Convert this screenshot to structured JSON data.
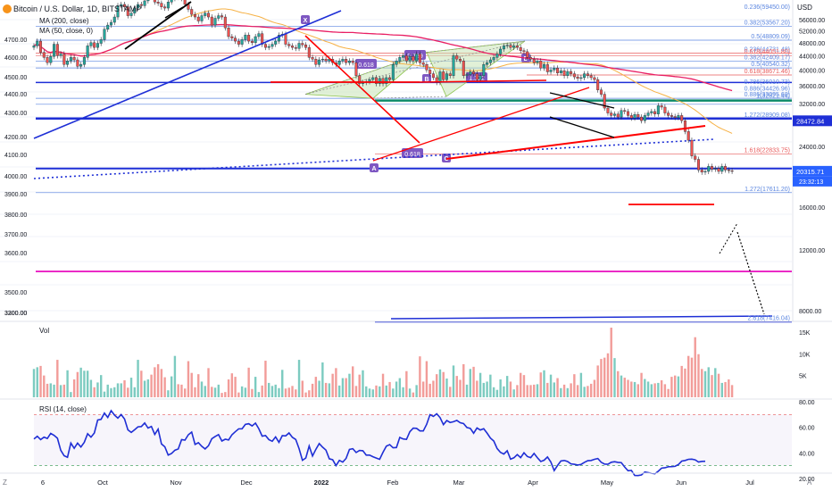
{
  "chart_data": {
    "type": "candlestick",
    "title": "Bitcoin / U.S. Dollar, 1D, BITSTAMP",
    "indicators": [
      "MA (200, close)",
      "MA (50, close, 0)"
    ],
    "currency_label": "USD",
    "left_scale_ticks": [
      "4700.00",
      "4600.00",
      "4500.00",
      "4400.00",
      "4300.00",
      "4200.00",
      "4100.00",
      "4000.00",
      "3900.00",
      "3800.00",
      "3700.00",
      "3600.00",
      "3500.00",
      "3300.00",
      "3200.00"
    ],
    "right_scale_ticks": [
      "56000.00",
      "52000.00",
      "48000.00",
      "44000.00",
      "40000.00",
      "36000.00",
      "32000.00",
      "28000.00",
      "24000.00",
      "20000.00",
      "16000.00",
      "12000.00",
      "8000.00"
    ],
    "x_ticks": [
      "6",
      "Oct",
      "Nov",
      "Dec",
      "2022",
      "Feb",
      "Mar",
      "Apr",
      "May",
      "Jun",
      "Jul"
    ],
    "price_close": [
      47000,
      48500,
      45000,
      43500,
      42000,
      43800,
      47500,
      44000,
      44500,
      41500,
      42500,
      43500,
      42800,
      41000,
      41500,
      43500,
      47000,
      48000,
      46500,
      47800,
      49000,
      52500,
      54000,
      55000,
      57000,
      61500,
      62000,
      61000,
      57500,
      58500,
      60500,
      62000,
      61500,
      63500,
      66000,
      65500,
      63000,
      62500,
      61000,
      60500,
      63000,
      64500,
      66000,
      65000,
      64500,
      62000,
      60000,
      58000,
      57000,
      55500,
      57500,
      58500,
      57000,
      54000,
      56500,
      57500,
      57000,
      53000,
      50000,
      49500,
      48500,
      47500,
      49000,
      50500,
      48500,
      48000,
      50000,
      51000,
      47500,
      46500,
      46800,
      47500,
      48500,
      50500,
      50800,
      47500,
      47000,
      46500,
      46200,
      47800,
      47300,
      46500,
      43500,
      43000,
      41500,
      42800,
      43000,
      42500,
      43000,
      42000,
      41500,
      42500,
      43000,
      42000,
      42500,
      42000,
      38500,
      36500,
      36800,
      37000,
      37500,
      38000,
      36500,
      37800,
      36500,
      38000,
      37500,
      41500,
      42500,
      43500,
      44000,
      42500,
      43800,
      42500,
      44500,
      42000,
      41500,
      40000,
      39000,
      38000,
      36800,
      39500,
      37500,
      39000,
      38500,
      44000,
      43000,
      42500,
      38500,
      38800,
      39500,
      39000,
      37500,
      38500,
      41500,
      42000,
      42800,
      43500,
      44500,
      46000,
      47000,
      47200,
      46500,
      47000,
      46500,
      45500,
      45200,
      43500,
      43000,
      42000,
      42500,
      40500,
      41500,
      39500,
      40000,
      40500,
      39200,
      39800,
      38500,
      39600,
      39000,
      38200,
      37800,
      38000,
      39000,
      38500,
      38000,
      37500,
      35000,
      34000,
      31000,
      30000,
      29500,
      29800,
      29200,
      30500,
      30300,
      29500,
      29000,
      29700,
      29200,
      28500,
      29500,
      30000,
      30300,
      29800,
      31500,
      31200,
      30000,
      29500,
      29300,
      29100,
      29500,
      28500,
      26500,
      25000,
      22500,
      22000,
      20500,
      20200,
      20300,
      21000,
      20600,
      20700,
      20300,
      21000,
      20500,
      20400,
      20316
    ],
    "volume": [
      6.5,
      6.9,
      7.2,
      5.0,
      3.1,
      3.2,
      2.9,
      8.6,
      2.8,
      2.9,
      6.2,
      1.2,
      4.1,
      5.8,
      6.8,
      6.1,
      6.1,
      4.0,
      2.3,
      3.4,
      5.1,
      1.3,
      2.9,
      2.1,
      2.3,
      3.2,
      3.2,
      3.9,
      2.2,
      4.5,
      2.3,
      8.6,
      6.1,
      3.8,
      4.1,
      5.2,
      6.9,
      7.6,
      6.5,
      4.6,
      1.6,
      4.8,
      9.5,
      3.0,
      2.9,
      2.0,
      8.3,
      5.6,
      2.3,
      5.3,
      3.6,
      2.6,
      6.7,
      2.4,
      2.2,
      2.9,
      1.0,
      1.2,
      4.1,
      5.5,
      4.7,
      1.1,
      2.5,
      2.2,
      6.8,
      1.9,
      4.7,
      1.2,
      2.7,
      8.4,
      3.3,
      2.6,
      2.9,
      2.1,
      6.3,
      2.0,
      2.2,
      2.6,
      1.8,
      8.6,
      3.8,
      1.1,
      1.6,
      3.1,
      4.7,
      3.8,
      8.0,
      3.3,
      3.2,
      5.4,
      6.7,
      2.7,
      4.4,
      4.4,
      5.4,
      7.1,
      2.6,
      5.2,
      6.2,
      2.5,
      2.0,
      1.8,
      2.7,
      2.5,
      5.4,
      2.7,
      3.5,
      2.0,
      3.6,
      4.4,
      2.3,
      6.0,
      2.0,
      1.1,
      2.8,
      9.4,
      3.6,
      8.3,
      3.1,
      3.8,
      5.3,
      6.4,
      5.8,
      4.3,
      2.4,
      7.3,
      4.9,
      4.0,
      7.6,
      2.9,
      6.5,
      7.0,
      3.8,
      5.6,
      3.3,
      3.6,
      5.2,
      2.3,
      1.7,
      4.1,
      2.5,
      4.9,
      3.6,
      1.8,
      2.8,
      5.6,
      5.1,
      2.8,
      2.8,
      2.9,
      3.0,
      5.7,
      6.2,
      3.3,
      5.2,
      3.4,
      4.4,
      2.1,
      2.9,
      2.1,
      3.2,
      5.3,
      2.8,
      5.6,
      2.4,
      2.6,
      3.1,
      4.0,
      7.3,
      8.8,
      9.1,
      10.1,
      16.0,
      9.0,
      6.0,
      5.0,
      4.5,
      4.0,
      3.6,
      3.5,
      3.0,
      5.6,
      4.2,
      3.6,
      3.0,
      3.2,
      3.3,
      3.9,
      3.0,
      1.9,
      4.7,
      5.0,
      4.8,
      7.2,
      6.6,
      9.5,
      9.1,
      13.8,
      9.9,
      6.5,
      6.0,
      6.9,
      5.1,
      6.7,
      5.4,
      3.3,
      3.5,
      4.1,
      2.8
    ],
    "rsi_title": "RSI (14, close)",
    "rsi_ticks": [
      "80.00",
      "60.00",
      "40.00",
      "20.00"
    ],
    "rsi": [
      50.9,
      53,
      50.4,
      52.3,
      51.3,
      55.3,
      53.7,
      51.5,
      42,
      37.8,
      36.6,
      47.7,
      43.6,
      47.7,
      44.6,
      48.3,
      55,
      52.3,
      55.6,
      65.7,
      66.2,
      71.1,
      67.7,
      73,
      69.6,
      67.2,
      70,
      66.5,
      58,
      56,
      58.1,
      60.4,
      60.6,
      63.4,
      59.4,
      60.7,
      54.4,
      58.6,
      47,
      44.8,
      38.3,
      39.6,
      42.1,
      43.1,
      50.4,
      50,
      54.2,
      56.3,
      46.6,
      48,
      45.2,
      43.1,
      45.6,
      51.1,
      52.8,
      54.3,
      49.3,
      50.7,
      50.1,
      54.2,
      56.6,
      58.8,
      58.8,
      62.3,
      62.8,
      61.1,
      63.3,
      58.9,
      53.1,
      53.6,
      50.4,
      49.1,
      52.5,
      48.3,
      53.5,
      53.3,
      55.6,
      52.2,
      50.5,
      43.3,
      34.2,
      36,
      45.4,
      37.6,
      42.8,
      47.3,
      44.5,
      42.2,
      35.4,
      34.7,
      30.1,
      34.2,
      32.8,
      35.7,
      42.7,
      43.3,
      40.3,
      41.9,
      41.7,
      38.3,
      38.3,
      37,
      36,
      35,
      40.5,
      45.3,
      46.5,
      44,
      44.2,
      52.1,
      50.9,
      50.6,
      56.6,
      59.4,
      59.2,
      57.2,
      57.2,
      62.3,
      69.9,
      68.5,
      70.6,
      67.6,
      62.1,
      65.3,
      63.8,
      64.4,
      65.4,
      63.6,
      62.9,
      59.8,
      59.2,
      55.4,
      59.5,
      57.9,
      58.9,
      55.5,
      51.6,
      49.3,
      43.4,
      40.4,
      39.1,
      41.7,
      35.1,
      36.2,
      38.7,
      36.3,
      40.1,
      37.2,
      36.3,
      39.6,
      36.2,
      33.3,
      34.3,
      36.8,
      32.9,
      26.2,
      30.2,
      33.7,
      34.1,
      33.3,
      31.4,
      31.1,
      30.5,
      31,
      32.6,
      33.9,
      34.1,
      35,
      35.6,
      32.7,
      31.3,
      31.1,
      32.7,
      33.1,
      32.6,
      32.4,
      29,
      26.1,
      26.3,
      22.4,
      22.3,
      22.8,
      25.1,
      24.6,
      24.1,
      23.7,
      25.7,
      28.1,
      28.4,
      29.2,
      29.3,
      29.5,
      30.9,
      33.6,
      34.1,
      35,
      35.1,
      34.6,
      32.9,
      33.4,
      33.5
    ],
    "fib_labels": [
      {
        "text": "0.236(59450.00)",
        "price": 59450
      },
      {
        "text": "0.382(53567.20)",
        "price": 53567
      },
      {
        "text": "0.5(48809.09)",
        "price": 48809
      },
      {
        "text": "0.236(44731.48)",
        "price": 44731
      },
      {
        "text": "0.618(44051.80)",
        "price": 44052
      },
      {
        "text": "0.382(42409.17)",
        "price": 42409
      },
      {
        "text": "0.5(40540.32)",
        "price": 40540
      },
      {
        "text": "0.618(38671.46)",
        "price": 38671
      },
      {
        "text": "0.786(36010.73)",
        "price": 36011
      },
      {
        "text": "0.886(34426.96)",
        "price": 34427
      },
      {
        "text": "0.886(33095.60)",
        "price": 33096
      },
      {
        "text": "1(32821.44)",
        "price": 32821
      },
      {
        "text": "1.272(28909.08)",
        "price": 28909
      },
      {
        "text": "1.618(22833.75)",
        "price": 22834
      },
      {
        "text": "1.272(17611.20)",
        "price": 17611
      },
      {
        "text": "2.618(7416.04)",
        "price": 7416
      }
    ],
    "pattern_points": [
      {
        "label": "X"
      },
      {
        "label": "A"
      },
      {
        "label": "B"
      },
      {
        "label": "C"
      },
      {
        "label": "D"
      }
    ],
    "pattern_ratios": [
      "0.789",
      "0.618",
      "1.322",
      "0.618",
      "0.236"
    ],
    "price_tags": [
      {
        "text": "28472.84",
        "price": 28473,
        "color": "#1e2fd6"
      },
      {
        "text": "20315.71",
        "price": 20316,
        "color": "#2962ff"
      }
    ],
    "countdown": "23:32:13",
    "colors": {
      "up": "#26a69a",
      "down": "#ef5350",
      "ma200": "#e91e63",
      "ma50": "#f6b144",
      "rsi": "#1f2fd5",
      "drawing_blue": "#1e2fd6",
      "drawing_red": "#ff0000",
      "magenta": "#e91ec3",
      "fib_blue": "#5b86e0",
      "fib_red": "#e85a5a",
      "pattern_fill": "#c9e3b6",
      "label_bg": "#7e57c2"
    }
  },
  "volume_title": "Vol",
  "volume_ticks": [
    "15K",
    "10K",
    "5K"
  ],
  "corner_labels": [
    "Z",
    "A"
  ]
}
